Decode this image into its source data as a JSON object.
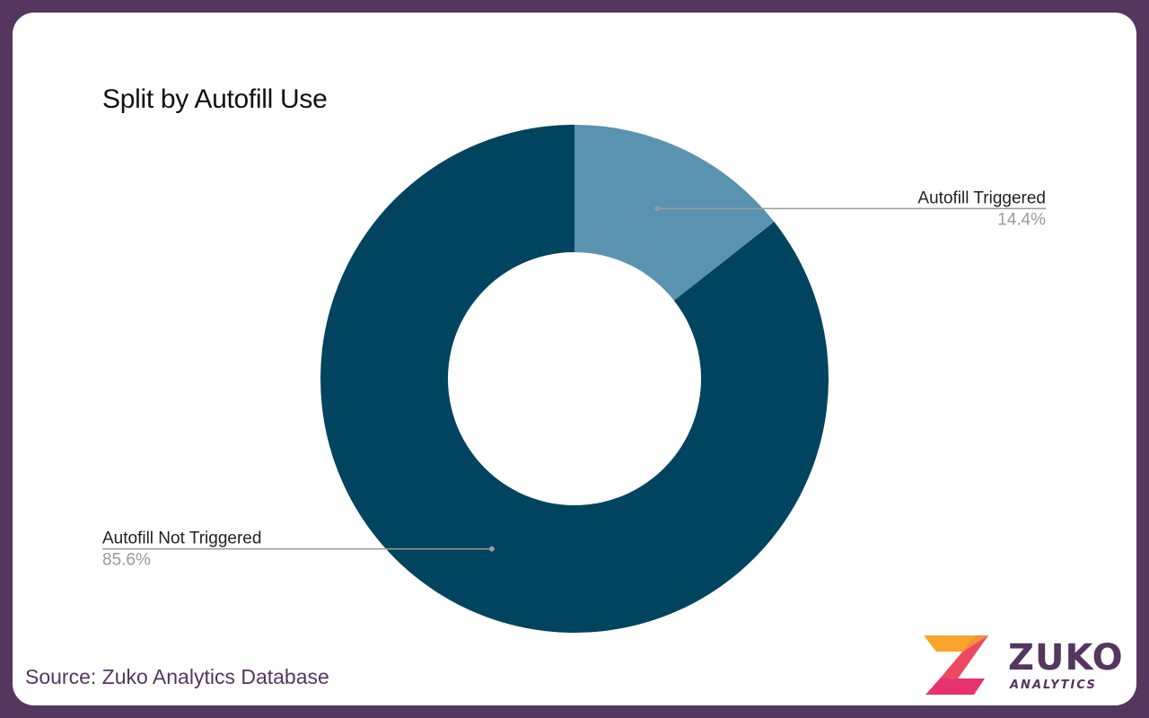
{
  "chart_data": {
    "type": "pie",
    "title": "Split by Autofill Use",
    "donut": true,
    "slices": [
      {
        "label": "Autofill Triggered",
        "value": 14.4,
        "value_label": "14.4%",
        "color": "#5a93b0"
      },
      {
        "label": "Autofill Not Triggered",
        "value": 85.6,
        "value_label": "85.6%",
        "color": "#00445f"
      }
    ]
  },
  "footer": {
    "source": "Source: Zuko Analytics Database"
  },
  "logo": {
    "name": "ZUKO",
    "tagline": "ANALYTICS",
    "colors": [
      "#f7a52b",
      "#e8326f",
      "#54365f"
    ]
  },
  "colors": {
    "frame": "#54365f",
    "background": "#ffffff"
  }
}
